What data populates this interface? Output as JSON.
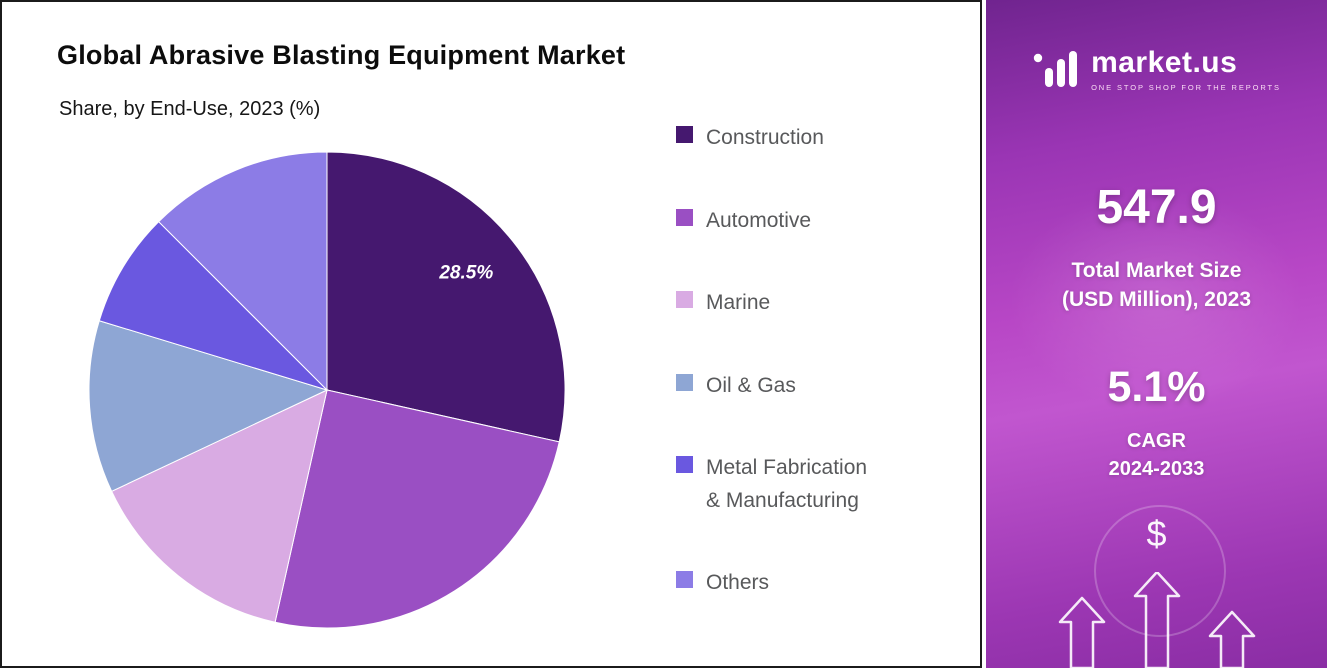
{
  "header": {
    "title": "Global Abrasive Blasting Equipment Market",
    "subtitle": "Share, by End-Use, 2023 (%)"
  },
  "chart_data": {
    "type": "pie",
    "title": "Global Abrasive Blasting Equipment Market",
    "subtitle": "Share, by End-Use, 2023 (%)",
    "unit": "%",
    "labels": [
      "Construction",
      "Automotive",
      "Marine",
      "Oil & Gas",
      "Metal Fabrication & Manufacturing",
      "Others"
    ],
    "values": [
      28.5,
      25.0,
      14.5,
      11.7,
      7.8,
      12.5
    ],
    "colors": [
      "#45186f",
      "#9a4fc3",
      "#d9abe3",
      "#8ea6d4",
      "#6a58e0",
      "#8c7ce6"
    ],
    "data_labels": [
      "28.5%",
      "",
      "",
      "",
      "",
      ""
    ],
    "start_angle_deg": 0,
    "direction": "clockwise",
    "legend_position": "right"
  },
  "legend": {
    "items": [
      {
        "lines": [
          "Construction"
        ],
        "color": "#45186f"
      },
      {
        "lines": [
          "Automotive"
        ],
        "color": "#9a4fc3"
      },
      {
        "lines": [
          "Marine"
        ],
        "color": "#d9abe3"
      },
      {
        "lines": [
          "Oil & Gas"
        ],
        "color": "#8ea6d4"
      },
      {
        "lines": [
          "Metal Fabrication",
          " & Manufacturing"
        ],
        "color": "#6a58e0"
      },
      {
        "lines": [
          "Others"
        ],
        "color": "#8c7ce6"
      }
    ]
  },
  "sidebar": {
    "brand": {
      "name": "market.us",
      "tagline": "ONE STOP SHOP FOR THE REPORTS",
      "logo_icon": "marketus-logo"
    },
    "market_size_value": "547.9",
    "market_size_label_line1": "Total Market Size",
    "market_size_label_line2": "(USD Million), 2023",
    "cagr_value": "5.1%",
    "cagr_label_line1": "CAGR",
    "cagr_label_line2": "2024-2033",
    "dollar_symbol": "$",
    "accent_colors": {
      "gradient_top": "#70248f",
      "gradient_mid": "#b847c6",
      "gradient_bottom": "#8a2da4"
    }
  }
}
